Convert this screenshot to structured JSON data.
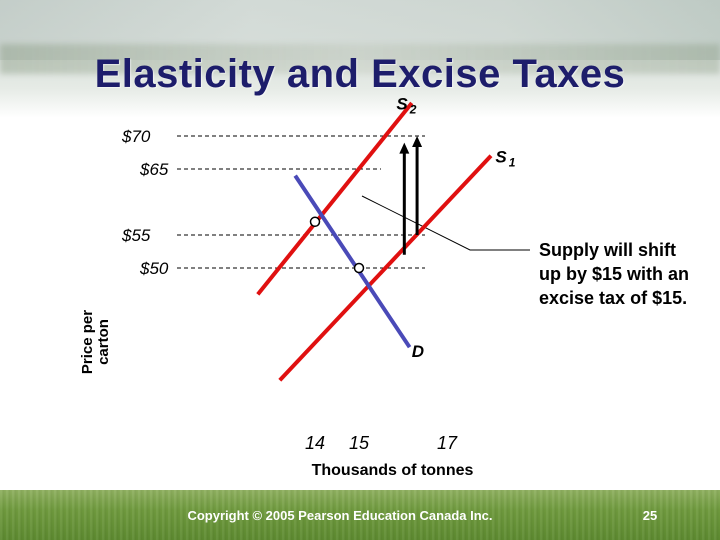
{
  "slide": {
    "title": "Elasticity and Excise Taxes",
    "copyright": "Copyright © 2005 Pearson Education Canada Inc.",
    "page_number": "25"
  },
  "callout": {
    "text": "Supply will shift up by $15 with an excise tax of $15."
  },
  "colors": {
    "title": "#1d1d6b",
    "supply": "#e01010",
    "demand": "#4a4ab8",
    "guide": "#000000",
    "arrow": "#000000"
  },
  "chart_data": {
    "type": "line",
    "xlabel": "Thousands of tonnes",
    "ylabel": "Price per carton",
    "x_ticks": [
      {
        "value": 14,
        "label": "14"
      },
      {
        "value": 15,
        "label": "15"
      },
      {
        "value": 17,
        "label": "17"
      }
    ],
    "y_ticks": [
      {
        "value": 70,
        "label": "$70"
      },
      {
        "value": 65,
        "label": "$65"
      },
      {
        "value": 55,
        "label": "$55"
      },
      {
        "value": 50,
        "label": "$50"
      }
    ],
    "series": [
      {
        "name": "S",
        "sub": "1",
        "kind": "supply",
        "points": [
          [
            13.2,
            33
          ],
          [
            18.0,
            67
          ]
        ],
        "label_at": [
          18.1,
          66
        ]
      },
      {
        "name": "S",
        "sub": "2",
        "kind": "supply",
        "points": [
          [
            12.7,
            46
          ],
          [
            16.2,
            75
          ]
        ],
        "label_at": [
          15.85,
          74
        ]
      },
      {
        "name": "D",
        "sub": "",
        "kind": "demand",
        "points": [
          [
            13.55,
            64
          ],
          [
            16.15,
            38
          ]
        ],
        "label_at": [
          16.2,
          36.5
        ]
      }
    ],
    "equilibria": [
      {
        "x": 14,
        "y": 57
      },
      {
        "x": 15,
        "y": 50
      }
    ],
    "guides": [
      {
        "y": 70,
        "x_end": 16.5
      },
      {
        "y": 65,
        "x_end": 15.5
      },
      {
        "y": 55,
        "x_end": 16.5
      },
      {
        "y": 50,
        "x_end": 16.5
      }
    ],
    "tax_arrows": [
      {
        "x": 16.03,
        "from": 52,
        "to": 69
      },
      {
        "x": 16.32,
        "from": 55,
        "to": 70
      }
    ],
    "tax_amount": 15
  }
}
